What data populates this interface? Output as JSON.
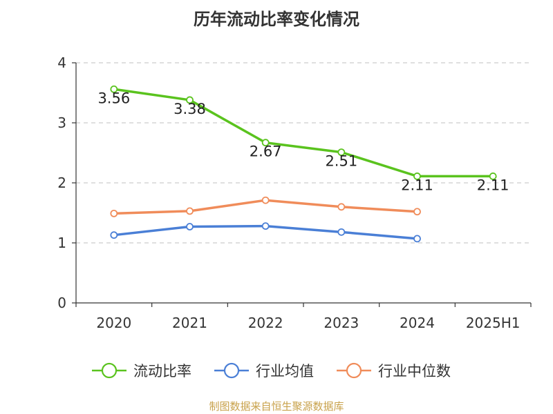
{
  "title": "历年流动比率变化情况",
  "source_text": "制图数据来自恒生聚源数据库",
  "chart_data": {
    "type": "line",
    "title": "历年流动比率变化情况",
    "categories": [
      "2020",
      "2021",
      "2022",
      "2023",
      "2024",
      "2025H1"
    ],
    "ylim": [
      0,
      4
    ],
    "yticks": [
      0,
      1,
      2,
      3,
      4
    ],
    "grid": true,
    "legend_position": "bottom",
    "series": [
      {
        "name": "流动比率",
        "color": "#5ac31e",
        "values": [
          3.56,
          3.38,
          2.67,
          2.51,
          2.11,
          2.11
        ],
        "labels": [
          "3.56",
          "3.38",
          "2.67",
          "2.51",
          "2.11",
          "2.11"
        ]
      },
      {
        "name": "行业均值",
        "color": "#4a7fd6",
        "values": [
          1.13,
          1.27,
          1.28,
          1.18,
          1.07,
          null
        ]
      },
      {
        "name": "行业中位数",
        "color": "#f08c5a",
        "values": [
          1.49,
          1.53,
          1.71,
          1.6,
          1.52,
          null
        ]
      }
    ]
  }
}
